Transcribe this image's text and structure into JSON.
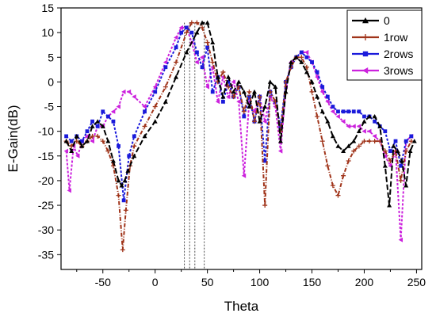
{
  "chart_data": {
    "type": "line",
    "title": "",
    "xlabel": "Theta",
    "ylabel": "E-Gain(dB)",
    "xlim": [
      -90,
      255
    ],
    "ylim": [
      -38,
      15
    ],
    "x_ticks": [
      -50,
      0,
      50,
      100,
      150,
      200,
      250
    ],
    "y_ticks": [
      15,
      10,
      5,
      0,
      -5,
      -10,
      -15,
      -20,
      -25,
      -30,
      -35
    ],
    "legend_position": "top-right",
    "grid": false,
    "reference_lines_x": [
      28,
      33,
      38,
      47
    ],
    "series": [
      {
        "name": "0",
        "color": "#000000",
        "marker": "triangle",
        "x": [
          -85,
          -80,
          -75,
          -70,
          -65,
          -60,
          -55,
          -50,
          -45,
          -40,
          -35,
          -32,
          -29,
          -26,
          -20,
          -10,
          0,
          10,
          20,
          30,
          40,
          45,
          50,
          55,
          60,
          65,
          70,
          75,
          80,
          85,
          90,
          95,
          100,
          105,
          110,
          115,
          120,
          125,
          130,
          135,
          140,
          145,
          150,
          155,
          160,
          165,
          170,
          175,
          180,
          185,
          190,
          195,
          200,
          205,
          210,
          215,
          220,
          224,
          228,
          232,
          236,
          240,
          244,
          248
        ],
        "y": [
          -12,
          -14,
          -11,
          -13,
          -12,
          -9,
          -8,
          -9,
          -12,
          -16,
          -20,
          -21,
          -20,
          -18,
          -15,
          -11,
          -8,
          -4,
          1,
          6,
          10,
          12,
          12,
          8,
          1,
          -3,
          1,
          -2,
          0,
          -2,
          -5,
          -2,
          -8,
          -5,
          0,
          -1,
          -12,
          -2,
          4,
          5,
          4,
          2,
          0,
          -3,
          -6,
          -8,
          -11,
          -13,
          -14,
          -13,
          -12,
          -10,
          -8,
          -7,
          -7,
          -9,
          -17,
          -25,
          -13,
          -14,
          -16,
          -21,
          -14,
          -12
        ]
      },
      {
        "name": "1row",
        "color": "#a0341a",
        "marker": "plus",
        "x": [
          -85,
          -80,
          -75,
          -70,
          -65,
          -60,
          -55,
          -50,
          -45,
          -40,
          -35,
          -31,
          -28,
          -24,
          -20,
          -10,
          0,
          10,
          20,
          30,
          35,
          40,
          45,
          50,
          55,
          60,
          65,
          70,
          75,
          80,
          85,
          90,
          95,
          100,
          105,
          110,
          115,
          120,
          125,
          130,
          135,
          140,
          145,
          150,
          155,
          160,
          165,
          170,
          175,
          180,
          185,
          190,
          195,
          200,
          205,
          210,
          215,
          220,
          225,
          230,
          235,
          240,
          245
        ],
        "y": [
          -12,
          -13,
          -12,
          -13,
          -12,
          -11,
          -11,
          -12,
          -14,
          -17,
          -23,
          -34,
          -26,
          -17,
          -13,
          -9,
          -5,
          -1,
          4,
          10,
          12,
          12,
          11,
          8,
          4,
          0,
          2,
          -1,
          -3,
          -1,
          -6,
          -2,
          -8,
          -3,
          -25,
          -2,
          -4,
          -10,
          0,
          3,
          5,
          5,
          3,
          -2,
          -7,
          -12,
          -17,
          -21,
          -23,
          -19,
          -16,
          -14,
          -13,
          -12,
          -12,
          -12,
          -12,
          -14,
          -16,
          -14,
          -20,
          -14,
          -12
        ]
      },
      {
        "name": "2rows",
        "color": "#1a1adb",
        "marker": "square",
        "x": [
          -85,
          -80,
          -75,
          -70,
          -65,
          -60,
          -55,
          -50,
          -45,
          -40,
          -35,
          -30,
          -25,
          -20,
          -10,
          0,
          10,
          20,
          25,
          30,
          35,
          40,
          45,
          50,
          55,
          60,
          65,
          70,
          75,
          80,
          85,
          90,
          95,
          100,
          105,
          110,
          115,
          120,
          125,
          130,
          135,
          140,
          145,
          150,
          155,
          160,
          165,
          170,
          175,
          180,
          185,
          190,
          195,
          200,
          205,
          210,
          215,
          220,
          225,
          230,
          235,
          240,
          245
        ],
        "y": [
          -11,
          -12,
          -11,
          -12,
          -10,
          -8,
          -9,
          -6,
          -7,
          -8,
          -13,
          -24,
          -15,
          -11,
          -6,
          -2,
          3,
          7,
          10,
          11,
          10,
          6,
          3,
          7,
          -2,
          1,
          -4,
          0,
          -3,
          -1,
          -7,
          -3,
          -8,
          -3,
          -16,
          -2,
          -4,
          -9,
          0,
          3,
          5,
          6,
          5,
          4,
          2,
          -1,
          -3,
          -5,
          -6,
          -6,
          -6,
          -6,
          -6,
          -7,
          -7,
          -8,
          -9,
          -10,
          -14,
          -12,
          -17,
          -12,
          -11
        ]
      },
      {
        "name": "3rows",
        "color": "#cc22dd",
        "marker": "triangle-left",
        "x": [
          -85,
          -82,
          -78,
          -74,
          -70,
          -65,
          -60,
          -55,
          -50,
          -45,
          -40,
          -35,
          -30,
          -25,
          -20,
          -10,
          0,
          10,
          20,
          25,
          30,
          35,
          40,
          45,
          50,
          55,
          60,
          65,
          70,
          75,
          80,
          85,
          90,
          95,
          100,
          105,
          110,
          115,
          120,
          125,
          130,
          135,
          140,
          145,
          150,
          155,
          160,
          165,
          170,
          175,
          180,
          185,
          190,
          195,
          200,
          205,
          210,
          215,
          220,
          225,
          230,
          235,
          240,
          245
        ],
        "y": [
          -14,
          -22,
          -13,
          -15,
          -12,
          -11,
          -12,
          -9,
          -9,
          -7,
          -6,
          -5,
          -2,
          -2,
          -3,
          -5,
          -1,
          4,
          9,
          11,
          11,
          8,
          4,
          5,
          -1,
          3,
          -4,
          1,
          -3,
          0,
          -4,
          -19,
          -4,
          -6,
          -3,
          -8,
          -3,
          -5,
          -14,
          -1,
          4,
          5,
          6,
          6,
          4,
          1,
          -2,
          -4,
          -6,
          -7,
          -8,
          -9,
          -9,
          -9,
          -10,
          -10,
          -11,
          -12,
          -15,
          -17,
          -14,
          -32,
          -12,
          -11
        ]
      }
    ]
  }
}
